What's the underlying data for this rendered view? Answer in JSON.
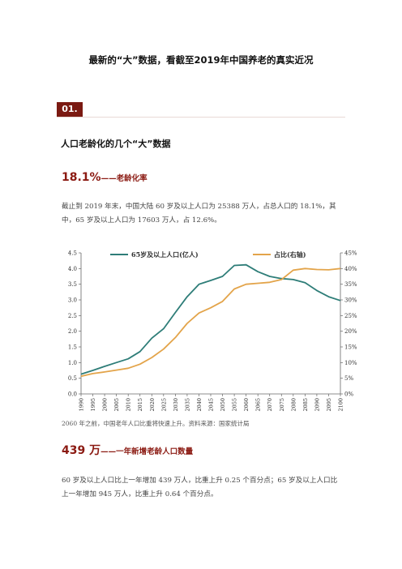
{
  "doc": {
    "title": "最新的“大”数据，看截至2019年中国养老的真实近况",
    "section_no": "01.",
    "section_heading": "人口老龄化的几个“大”数据",
    "stat1_value": "18.1%",
    "stat1_suffix": "——老龄化率",
    "para1": "截止到 2019 年末，中国大陆 60 岁及以上人口为 25388 万人，占总人口的 18.1%，其中，65 岁及以上人口为 17603 万人，占 12.6%。",
    "caption": "2060 年之前，中国老年人口比重将快速上升。资料来源：国家统计局",
    "stat2_value": "439 万",
    "stat2_suffix": "——一年新增老龄人口数量",
    "para2": "60 岁及以上人口比上一年增加 439 万人，比重上升 0.25 个百分点；65 岁及以上人口比上一年增加 945 万人，比重上升 0.64 个百分点。"
  },
  "chart_data": {
    "type": "line",
    "legend_placement": "top",
    "grid": false,
    "x": [
      1990,
      1995,
      2000,
      2005,
      2010,
      2015,
      2020,
      2025,
      2030,
      2035,
      2040,
      2045,
      2050,
      2055,
      2060,
      2065,
      2070,
      2075,
      2080,
      2085,
      2090,
      2095,
      2100
    ],
    "x_tick_labels": [
      "1990",
      "1995",
      "2000",
      "2005",
      "2010",
      "2015",
      "2020",
      "2025",
      "2030",
      "2035",
      "2040",
      "2045",
      "2050",
      "2055",
      "2060",
      "2065",
      "2070",
      "2075",
      "2080",
      "2085",
      "2090",
      "2095",
      "2100"
    ],
    "y_left": {
      "ylim": [
        0,
        4.5
      ],
      "ticks": [
        "0.0",
        "0.5",
        "1.0",
        "1.5",
        "2.0",
        "2.5",
        "3.0",
        "3.5",
        "4.0",
        "4.5"
      ]
    },
    "y_right": {
      "ylim": [
        0,
        45
      ],
      "ticks": [
        "0%",
        "5%",
        "10%",
        "15%",
        "20%",
        "25%",
        "30%",
        "35%",
        "40%",
        "45%"
      ]
    },
    "series": [
      {
        "name": "65岁及以上人口(亿人)",
        "axis": "left",
        "color": "#2e7d78",
        "values": [
          0.63,
          0.75,
          0.88,
          1.0,
          1.12,
          1.35,
          1.78,
          2.08,
          2.6,
          3.1,
          3.5,
          3.62,
          3.75,
          4.1,
          4.12,
          3.9,
          3.75,
          3.68,
          3.65,
          3.55,
          3.3,
          3.1,
          2.98
        ]
      },
      {
        "name": "占比(右轴)",
        "axis": "right",
        "color": "#e3a44a",
        "values": [
          5.6,
          6.5,
          7.0,
          7.6,
          8.2,
          9.5,
          11.6,
          14.3,
          18.0,
          22.5,
          25.8,
          27.5,
          29.5,
          33.5,
          35.0,
          35.3,
          35.6,
          36.5,
          39.5,
          40.0,
          39.7,
          39.6,
          40.0
        ]
      }
    ]
  }
}
